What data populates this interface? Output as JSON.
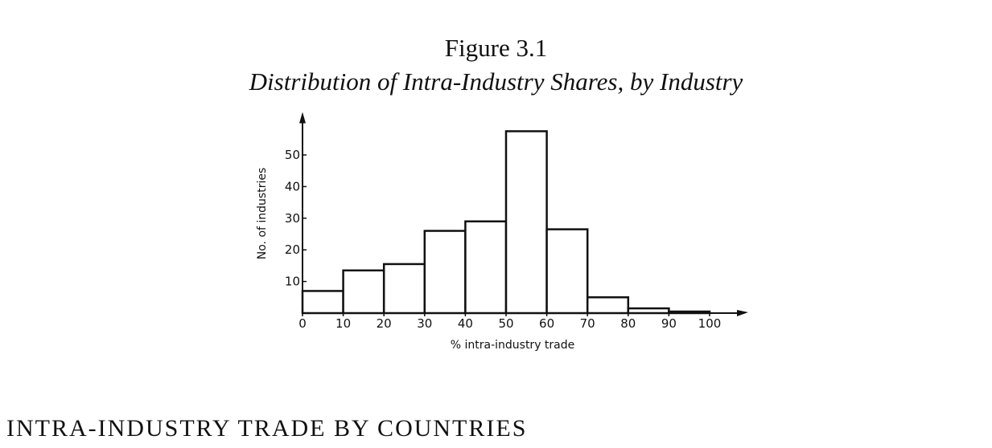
{
  "figure": {
    "number": "Figure 3.1",
    "title": "Distribution of Intra-Industry Shares, by Industry"
  },
  "section_heading": "INTRA-INDUSTRY TRADE BY COUNTRIES",
  "chart_data": {
    "type": "bar",
    "title": "Distribution of Intra-Industry Shares, by Industry",
    "xlabel": "% intra-industry trade",
    "ylabel": "No. of industries",
    "bin_edges": [
      0,
      10,
      20,
      30,
      40,
      50,
      60,
      70,
      80,
      90,
      100
    ],
    "values": [
      7,
      13.5,
      15.5,
      26,
      29,
      57.5,
      26.5,
      5,
      1.5,
      0.5
    ],
    "x_ticks": [
      "0",
      "10",
      "20",
      "30",
      "40",
      "50",
      "60",
      "70",
      "80",
      "90",
      "100"
    ],
    "y_ticks": [
      "10",
      "20",
      "30",
      "40",
      "50"
    ],
    "xlim": [
      0,
      100
    ],
    "ylim": [
      0,
      58
    ],
    "grid": false
  }
}
